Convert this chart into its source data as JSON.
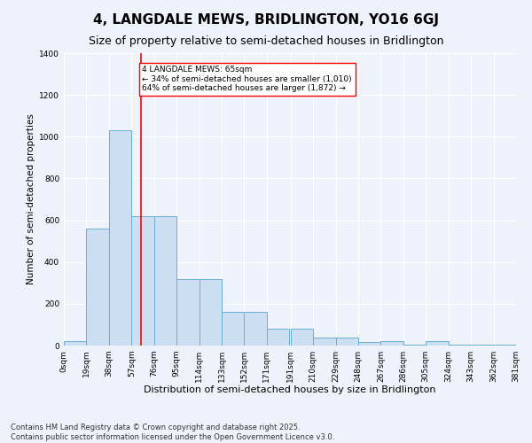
{
  "title": "4, LANGDALE MEWS, BRIDLINGTON, YO16 6GJ",
  "subtitle": "Size of property relative to semi-detached houses in Bridlington",
  "xlabel": "Distribution of semi-detached houses by size in Bridlington",
  "ylabel": "Number of semi-detached properties",
  "annotation_line1": "4 LANGDALE MEWS: 65sqm",
  "annotation_line2": "← 34% of semi-detached houses are smaller (1,010)",
  "annotation_line3": "64% of semi-detached houses are larger (1,872) →",
  "bin_edges": [
    0,
    19,
    38,
    57,
    76,
    95,
    114,
    133,
    152,
    171,
    191,
    210,
    229,
    248,
    267,
    286,
    305,
    324,
    343,
    362,
    381
  ],
  "bin_labels": [
    "0sqm",
    "19sqm",
    "38sqm",
    "57sqm",
    "76sqm",
    "95sqm",
    "114sqm",
    "133sqm",
    "152sqm",
    "171sqm",
    "191sqm",
    "210sqm",
    "229sqm",
    "248sqm",
    "267sqm",
    "286sqm",
    "305sqm",
    "324sqm",
    "343sqm",
    "362sqm",
    "381sqm"
  ],
  "bar_heights": [
    20,
    560,
    1030,
    620,
    620,
    320,
    320,
    160,
    160,
    80,
    80,
    40,
    40,
    15,
    20,
    5,
    20,
    5,
    5,
    5
  ],
  "bar_color": "#ccdff2",
  "bar_edge_color": "#6aaed6",
  "redline_x": 65,
  "background_color": "#eef2fa",
  "grid_color": "#ffffff",
  "ylim": [
    0,
    1400
  ],
  "yticks": [
    0,
    200,
    400,
    600,
    800,
    1000,
    1200,
    1400
  ],
  "footnote_line1": "Contains HM Land Registry data © Crown copyright and database right 2025.",
  "footnote_line2": "Contains public sector information licensed under the Open Government Licence v3.0.",
  "title_fontsize": 11,
  "subtitle_fontsize": 9,
  "xlabel_fontsize": 8,
  "ylabel_fontsize": 7.5,
  "tick_fontsize": 6.5,
  "annot_fontsize": 6.5,
  "footnote_fontsize": 6
}
